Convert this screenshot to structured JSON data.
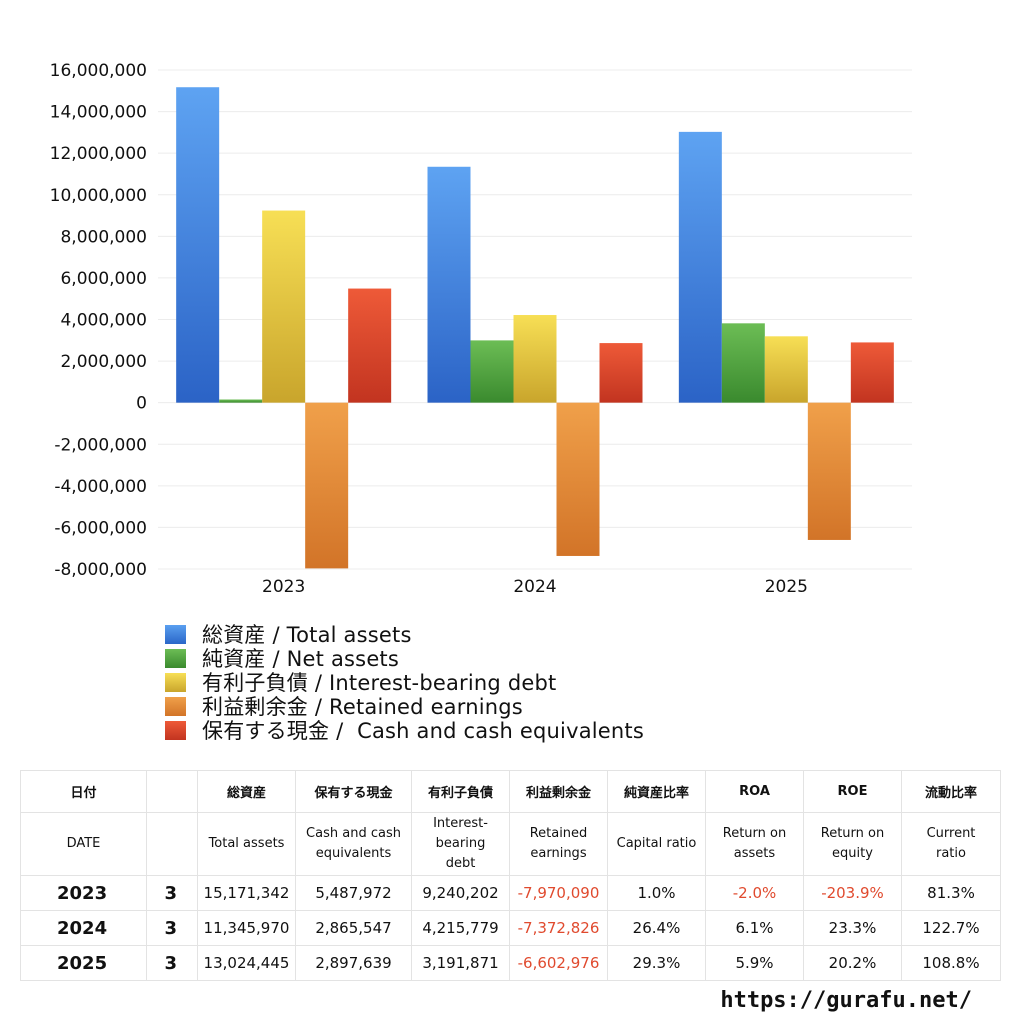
{
  "chart_data": {
    "type": "bar",
    "categories": [
      "2023",
      "2024",
      "2025"
    ],
    "series": [
      {
        "name": "総資産 / Total assets",
        "values": [
          15171342,
          11345970,
          13024445
        ],
        "color": "#3a7fdc"
      },
      {
        "name": "純資産 / Net assets",
        "values": [
          151713,
          2995336,
          3816162
        ],
        "color": "#4f9c3e"
      },
      {
        "name": "有利子負債 / Interest-bearing debt",
        "values": [
          9240202,
          4215779,
          3191871
        ],
        "color": "#e3c23a"
      },
      {
        "name": "利益剰余金 / Retained earnings",
        "values": [
          -7970090,
          -7372826,
          -6602976
        ],
        "color": "#e0862f"
      },
      {
        "name": "保有する現金 /  Cash and cash equivalents",
        "values": [
          5487972,
          2865547,
          2897639
        ],
        "color": "#d9442a"
      }
    ],
    "ylim": [
      -8000000,
      16000000
    ],
    "yticks": [
      16000000,
      14000000,
      12000000,
      10000000,
      8000000,
      6000000,
      4000000,
      2000000,
      0,
      -2000000,
      -4000000,
      -6000000,
      -8000000
    ],
    "ytick_labels": [
      "16,000,000",
      "14,000,000",
      "12,000,000",
      "10,000,000",
      "8,000,000",
      "6,000,000",
      "4,000,000",
      "2,000,000",
      "0",
      "-2,000,000",
      "-4,000,000",
      "-6,000,000",
      "-8,000,000"
    ],
    "grid": true,
    "legend_position": "bottom-left"
  },
  "legend": [
    {
      "label": "総資産 / Total assets",
      "color": "#3a7fdc"
    },
    {
      "label": "純資産 / Net assets",
      "color": "#4f9c3e"
    },
    {
      "label": "有利子負債 / Interest-bearing debt",
      "color": "#e3c23a"
    },
    {
      "label": "利益剰余金 / Retained earnings",
      "color": "#e0862f"
    },
    {
      "label": "保有する現金 /  Cash and cash equivalents",
      "color": "#d9442a"
    }
  ],
  "table": {
    "headers_jp": [
      "日付",
      "",
      "総資産",
      "保有する現金",
      "有利子負債",
      "利益剰余金",
      "純資産比率",
      "ROA",
      "ROE",
      "流動比率"
    ],
    "headers_en": [
      "DATE",
      "",
      "Total assets",
      "Cash and cash equivalents",
      "Interest-bearing debt",
      "Retained earnings",
      "Capital ratio",
      "Return on assets",
      "Return on equity",
      "Current ratio"
    ],
    "rows": [
      {
        "year": "2023",
        "month": "3",
        "total_assets": "15,171,342",
        "cash": "5,487,972",
        "debt": "9,240,202",
        "retained": "-7,970,090",
        "capital_ratio": "1.0%",
        "roa": "-2.0%",
        "roe": "-203.9%",
        "current_ratio": "81.3%"
      },
      {
        "year": "2024",
        "month": "3",
        "total_assets": "11,345,970",
        "cash": "2,865,547",
        "debt": "4,215,779",
        "retained": "-7,372,826",
        "capital_ratio": "26.4%",
        "roa": "6.1%",
        "roe": "23.3%",
        "current_ratio": "122.7%"
      },
      {
        "year": "2025",
        "month": "3",
        "total_assets": "13,024,445",
        "cash": "2,897,639",
        "debt": "3,191,871",
        "retained": "-6,602,976",
        "capital_ratio": "29.3%",
        "roa": "5.9%",
        "roe": "20.2%",
        "current_ratio": "108.8%"
      }
    ]
  },
  "watermark": "https://gurafu.net/"
}
